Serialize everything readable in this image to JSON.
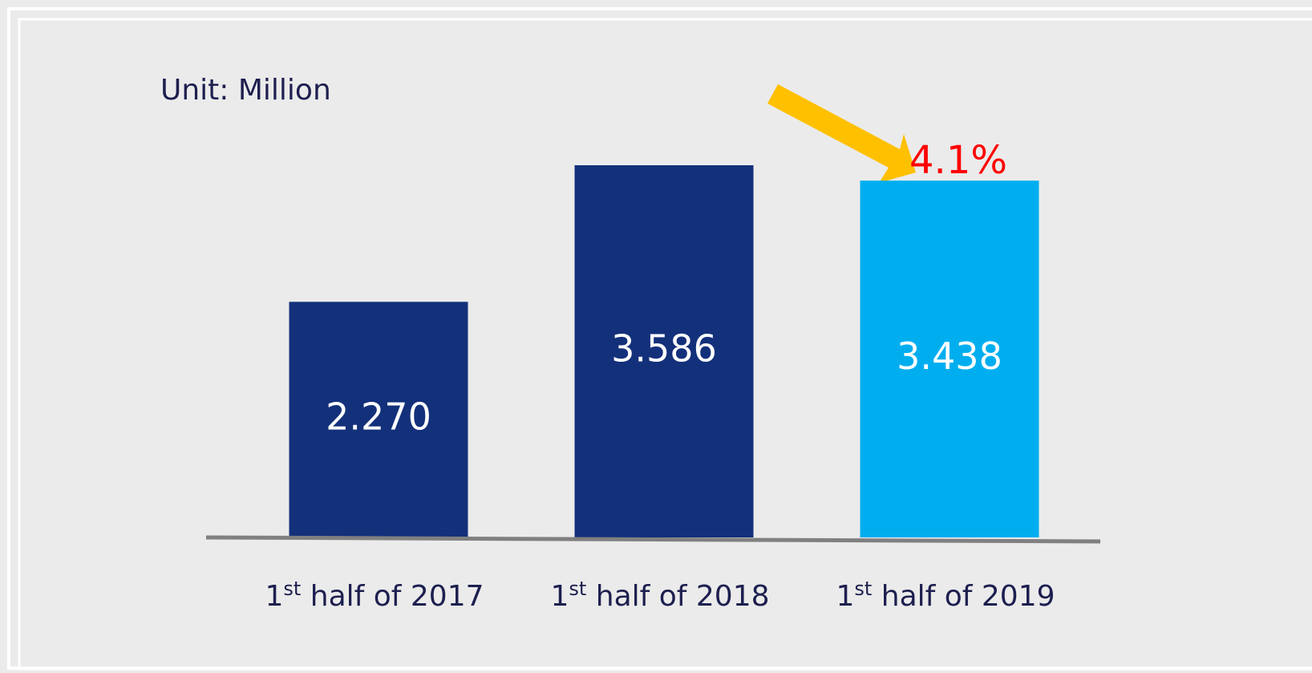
{
  "chart_data": {
    "type": "bar",
    "annotations": [
      "Unit: Million",
      "4.1%"
    ],
    "categories": [
      "1st half of 2017",
      "1st half of 2018",
      "1st half of 2019"
    ],
    "values": [
      2.27,
      3.586,
      3.438
    ],
    "value_labels": [
      "2.270",
      "3.586",
      "3.438"
    ],
    "colors": [
      "#13307a",
      "#13307a",
      "#00aeef"
    ]
  }
}
